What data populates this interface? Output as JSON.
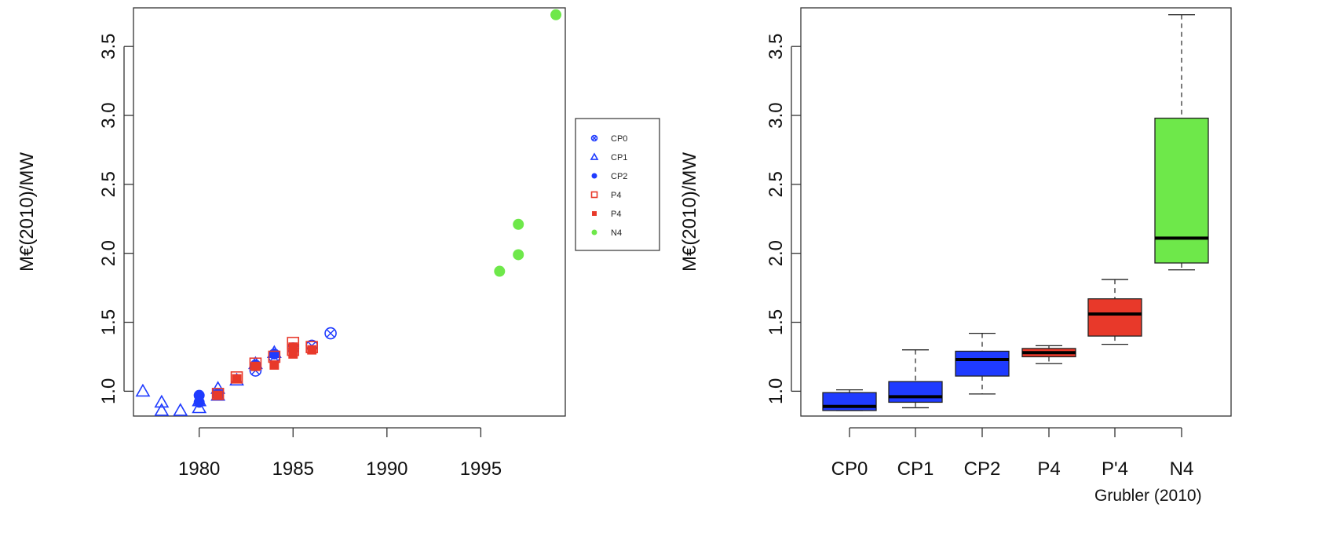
{
  "colors": {
    "blue": "#1f3bff",
    "blue_light": "#5b6cff",
    "red": "#e8392a",
    "green": "#6ee84a",
    "axis": "#333333"
  },
  "chart_data": [
    {
      "type": "scatter",
      "xlabel": "",
      "ylabel": "M€(2010)/MW",
      "xlim": [
        1976.5,
        1999.5
      ],
      "ylim": [
        0.82,
        3.78
      ],
      "x_ticks": [
        1980,
        1985,
        1990,
        1995
      ],
      "y_ticks": [
        1.0,
        1.5,
        2.0,
        2.5,
        3.0,
        3.5
      ],
      "y_tick_labels": [
        "1.0",
        "1.5",
        "2.0",
        "2.5",
        "3.0",
        "3.5"
      ],
      "legend_position": "right",
      "series": [
        {
          "name": "CP0",
          "marker": "circle-open",
          "color": "#1f3bff",
          "points": [
            [
              1983,
              1.15
            ],
            [
              1984,
              1.25
            ],
            [
              1985,
              1.31
            ],
            [
              1986,
              1.33
            ],
            [
              1987,
              1.42
            ]
          ]
        },
        {
          "name": "CP1",
          "marker": "triangle-open",
          "color": "#1f3bff",
          "points": [
            [
              1977,
              1.0
            ],
            [
              1978,
              0.92
            ],
            [
              1978,
              0.86
            ],
            [
              1979,
              0.86
            ],
            [
              1980,
              0.88
            ],
            [
              1980,
              0.93
            ],
            [
              1981,
              1.02
            ],
            [
              1981,
              0.97
            ],
            [
              1982,
              1.08
            ],
            [
              1983,
              1.2
            ],
            [
              1984,
              1.28
            ]
          ]
        },
        {
          "name": "CP2",
          "marker": "circle-filled",
          "color": "#1f3bff",
          "points": [
            [
              1980,
              0.97
            ],
            [
              1980,
              0.92
            ],
            [
              1981,
              0.98
            ],
            [
              1983,
              1.19
            ],
            [
              1984,
              1.27
            ]
          ]
        },
        {
          "name": "P4",
          "marker": "square-open",
          "color": "#e8392a",
          "points": [
            [
              1981,
              0.98
            ],
            [
              1982,
              1.1
            ],
            [
              1983,
              1.2
            ],
            [
              1984,
              1.25
            ],
            [
              1985,
              1.3
            ],
            [
              1985,
              1.35
            ],
            [
              1986,
              1.32
            ]
          ]
        },
        {
          "name": "P4",
          "marker": "square-filled",
          "color": "#e8392a",
          "points": [
            [
              1981,
              0.97
            ],
            [
              1982,
              1.09
            ],
            [
              1983,
              1.18
            ],
            [
              1984,
              1.19
            ],
            [
              1985,
              1.27
            ],
            [
              1985,
              1.32
            ],
            [
              1986,
              1.3
            ]
          ]
        },
        {
          "name": "N4",
          "marker": "circle-filled",
          "color": "#6ee84a",
          "points": [
            [
              1996,
              1.87
            ],
            [
              1997,
              1.99
            ],
            [
              1997,
              2.21
            ],
            [
              1999,
              3.73
            ]
          ]
        }
      ]
    },
    {
      "type": "box",
      "xlabel": "",
      "ylabel": "M€(2010)/MW",
      "ylim": [
        0.82,
        3.78
      ],
      "y_ticks": [
        1.0,
        1.5,
        2.0,
        2.5,
        3.0,
        3.5
      ],
      "y_tick_labels": [
        "1.0",
        "1.5",
        "2.0",
        "2.5",
        "3.0",
        "3.5"
      ],
      "categories": [
        "CP0",
        "CP1",
        "CP2",
        "P4",
        "P'4",
        "N4"
      ],
      "boxes": [
        {
          "category": "CP0",
          "min": 0.86,
          "q1": 0.86,
          "median": 0.89,
          "q3": 0.99,
          "max": 1.01,
          "color": "#1f3bff"
        },
        {
          "category": "CP1",
          "min": 0.88,
          "q1": 0.92,
          "median": 0.96,
          "q3": 1.07,
          "max": 1.3,
          "color": "#1f3bff"
        },
        {
          "category": "CP2",
          "min": 0.98,
          "q1": 1.11,
          "median": 1.23,
          "q3": 1.29,
          "max": 1.42,
          "color": "#1f3bff"
        },
        {
          "category": "P4",
          "min": 1.2,
          "q1": 1.25,
          "median": 1.28,
          "q3": 1.31,
          "max": 1.33,
          "color": "#e8392a"
        },
        {
          "category": "P'4",
          "min": 1.34,
          "q1": 1.4,
          "median": 1.56,
          "q3": 1.67,
          "max": 1.81,
          "color": "#e8392a"
        },
        {
          "category": "N4",
          "min": 1.88,
          "q1": 1.93,
          "median": 2.11,
          "q3": 2.98,
          "max": 3.73,
          "color": "#6ee84a"
        }
      ],
      "source_note": "Grubler (2010)"
    }
  ]
}
